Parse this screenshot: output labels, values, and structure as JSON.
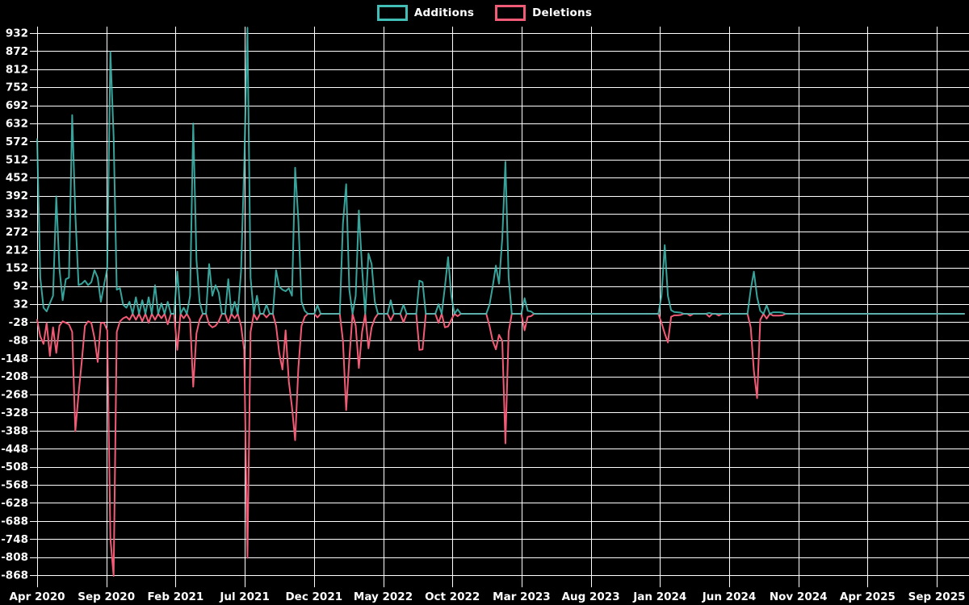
{
  "legend": {
    "additions_label": "Additions",
    "deletions_label": "Deletions"
  },
  "colors": {
    "background": "#000000",
    "grid": "#ffffff",
    "text": "#ffffff",
    "additions": "#41bfb6",
    "deletions": "#f15b76",
    "baseline_overlap": "#9fb3ba"
  },
  "chart_data": {
    "type": "line",
    "title": "",
    "xlabel": "",
    "ylabel": "",
    "ylim": [
      -868,
      932
    ],
    "y_tick_step": 60,
    "grid": "on",
    "legend_position": "top-center",
    "y_ticks": [
      932,
      872,
      812,
      752,
      692,
      632,
      572,
      512,
      452,
      392,
      332,
      272,
      212,
      152,
      92,
      32,
      -28,
      -88,
      -148,
      -208,
      -268,
      -328,
      -388,
      -448,
      -508,
      -568,
      -628,
      -688,
      -748,
      -808,
      -868
    ],
    "x_tick_labels": [
      "Apr 2020",
      "Sep 2020",
      "Feb 2021",
      "Jul 2021",
      "Dec 2021",
      "May 2022",
      "Oct 2022",
      "Mar 2023",
      "Aug 2023",
      "Jan 2024",
      "Jun 2024",
      "Nov 2024",
      "Apr 2025",
      "Sep 2025"
    ],
    "x_unit": "week",
    "weeks_total": 292,
    "default_value": 0,
    "series_names": [
      "Additions",
      "Deletions"
    ],
    "sparse_points_week_additions_deletions": [
      [
        0,
        580,
        -20
      ],
      [
        1,
        120,
        -75
      ],
      [
        2,
        20,
        -100
      ],
      [
        3,
        8,
        -30
      ],
      [
        4,
        35,
        -140
      ],
      [
        5,
        60,
        -45
      ],
      [
        6,
        390,
        -130
      ],
      [
        7,
        150,
        -40
      ],
      [
        8,
        45,
        -25
      ],
      [
        9,
        115,
        -30
      ],
      [
        10,
        120,
        -35
      ],
      [
        11,
        660,
        -60
      ],
      [
        12,
        330,
        -390
      ],
      [
        13,
        95,
        -265
      ],
      [
        14,
        100,
        -160
      ],
      [
        15,
        110,
        -40
      ],
      [
        16,
        95,
        -25
      ],
      [
        17,
        105,
        -30
      ],
      [
        18,
        145,
        -80
      ],
      [
        19,
        120,
        -160
      ],
      [
        20,
        40,
        -30
      ],
      [
        21,
        95,
        -30
      ],
      [
        22,
        150,
        -55
      ],
      [
        23,
        870,
        -745
      ],
      [
        24,
        590,
        -870
      ],
      [
        25,
        80,
        -60
      ],
      [
        26,
        85,
        -25
      ],
      [
        27,
        30,
        -15
      ],
      [
        28,
        20,
        -10
      ],
      [
        29,
        40,
        -20
      ],
      [
        31,
        55,
        -20
      ],
      [
        33,
        45,
        -25
      ],
      [
        35,
        55,
        -30
      ],
      [
        37,
        95,
        -20
      ],
      [
        39,
        35,
        -15
      ],
      [
        41,
        40,
        -35
      ],
      [
        44,
        140,
        -120
      ],
      [
        46,
        20,
        -15
      ],
      [
        48,
        60,
        -20
      ],
      [
        49,
        632,
        -242
      ],
      [
        50,
        180,
        -65
      ],
      [
        51,
        40,
        -20
      ],
      [
        54,
        165,
        -35
      ],
      [
        55,
        60,
        -45
      ],
      [
        56,
        95,
        -40
      ],
      [
        57,
        70,
        -25
      ],
      [
        60,
        115,
        -30
      ],
      [
        62,
        40,
        -15
      ],
      [
        64,
        140,
        -40
      ],
      [
        65,
        490,
        -120
      ],
      [
        66,
        950,
        -810
      ],
      [
        67,
        120,
        -60
      ],
      [
        69,
        60,
        -20
      ],
      [
        72,
        30,
        -12
      ],
      [
        75,
        145,
        -40
      ],
      [
        76,
        90,
        -130
      ],
      [
        77,
        80,
        -185
      ],
      [
        78,
        75,
        -55
      ],
      [
        79,
        85,
        -225
      ],
      [
        80,
        60,
        -310
      ],
      [
        81,
        485,
        -420
      ],
      [
        82,
        310,
        -180
      ],
      [
        83,
        40,
        -40
      ],
      [
        84,
        10,
        -10
      ],
      [
        88,
        28,
        -12
      ],
      [
        96,
        300,
        -90
      ],
      [
        97,
        430,
        -320
      ],
      [
        98,
        80,
        -150
      ],
      [
        100,
        60,
        -40
      ],
      [
        101,
        343,
        -180
      ],
      [
        102,
        150,
        -60
      ],
      [
        104,
        200,
        -115
      ],
      [
        105,
        165,
        -45
      ],
      [
        106,
        40,
        -15
      ],
      [
        111,
        45,
        -22
      ],
      [
        115,
        30,
        -28
      ],
      [
        120,
        110,
        -120
      ],
      [
        121,
        105,
        -118
      ],
      [
        126,
        32,
        -30
      ],
      [
        128,
        90,
        -45
      ],
      [
        129,
        188,
        -42
      ],
      [
        130,
        60,
        -20
      ],
      [
        132,
        15,
        -8
      ],
      [
        142,
        30,
        -40
      ],
      [
        143,
        90,
        -90
      ],
      [
        144,
        160,
        -118
      ],
      [
        145,
        100,
        -70
      ],
      [
        146,
        250,
        -90
      ],
      [
        147,
        505,
        -430
      ],
      [
        148,
        120,
        -60
      ],
      [
        153,
        52,
        -55
      ],
      [
        154,
        10,
        -10
      ],
      [
        155,
        8,
        -8
      ],
      [
        196,
        60,
        -30
      ],
      [
        197,
        228,
        -65
      ],
      [
        198,
        60,
        -95
      ],
      [
        199,
        12,
        -10
      ],
      [
        200,
        6,
        -5
      ],
      [
        201,
        5,
        -5
      ],
      [
        202,
        4,
        -4
      ],
      [
        205,
        0,
        -6
      ],
      [
        211,
        3,
        -10
      ],
      [
        214,
        0,
        -6
      ],
      [
        224,
        80,
        -45
      ],
      [
        225,
        140,
        -190
      ],
      [
        226,
        55,
        -280
      ],
      [
        227,
        10,
        -20
      ],
      [
        229,
        28,
        -16
      ],
      [
        231,
        5,
        -6
      ],
      [
        232,
        5,
        -6
      ],
      [
        233,
        5,
        -6
      ],
      [
        234,
        4,
        -5
      ]
    ]
  }
}
